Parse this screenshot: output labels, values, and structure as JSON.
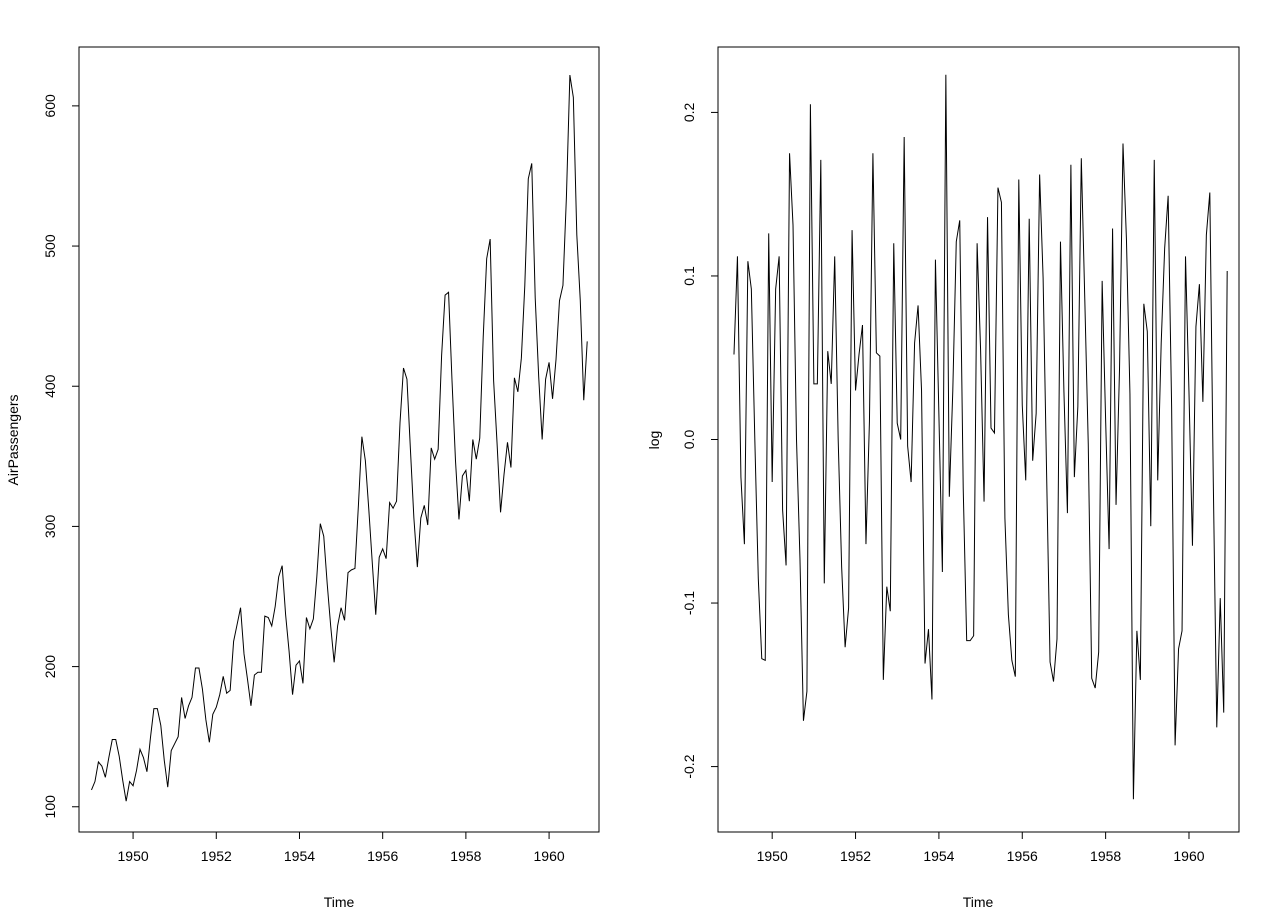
{
  "chart_data": [
    {
      "type": "line",
      "xlabel": "Time",
      "ylabel": "AirPassengers",
      "xlim": [
        1948.7,
        1961.2
      ],
      "ylim": [
        82,
        642
      ],
      "x_ticks": [
        1950,
        1952,
        1954,
        1956,
        1958,
        1960
      ],
      "x_tick_labels": [
        "1950",
        "1952",
        "1954",
        "1956",
        "1958",
        "1960"
      ],
      "y_ticks": [
        100,
        200,
        300,
        400,
        500,
        600
      ],
      "y_tick_labels": [
        "100",
        "200",
        "300",
        "400",
        "500",
        "600"
      ],
      "grid": false,
      "line_color": "#000000",
      "x_start": 1949,
      "x_step": 0.0833333,
      "values": [
        112,
        118,
        132,
        129,
        121,
        135,
        148,
        148,
        136,
        119,
        104,
        118,
        115,
        126,
        141,
        135,
        125,
        149,
        170,
        170,
        158,
        133,
        114,
        140,
        145,
        150,
        178,
        163,
        172,
        178,
        199,
        199,
        184,
        162,
        146,
        166,
        171,
        180,
        193,
        181,
        183,
        218,
        230,
        242,
        209,
        191,
        172,
        194,
        196,
        196,
        236,
        235,
        229,
        243,
        264,
        272,
        237,
        211,
        180,
        201,
        204,
        188,
        235,
        227,
        234,
        264,
        302,
        293,
        259,
        229,
        203,
        229,
        242,
        233,
        267,
        269,
        270,
        315,
        364,
        347,
        312,
        274,
        237,
        278,
        284,
        277,
        317,
        313,
        318,
        374,
        413,
        405,
        355,
        306,
        271,
        306,
        315,
        301,
        356,
        348,
        355,
        422,
        465,
        467,
        404,
        347,
        305,
        336,
        340,
        318,
        362,
        348,
        363,
        435,
        491,
        505,
        404,
        359,
        310,
        337,
        360,
        342,
        406,
        396,
        420,
        472,
        548,
        559,
        463,
        407,
        362,
        405,
        417,
        391,
        419,
        461,
        472,
        535,
        622,
        606,
        508,
        461,
        390,
        432
      ]
    },
    {
      "type": "line",
      "xlabel": "Time",
      "ylabel": "log",
      "xlim": [
        1948.7,
        1961.2
      ],
      "ylim": [
        -0.24,
        0.24
      ],
      "x_ticks": [
        1950,
        1952,
        1954,
        1956,
        1958,
        1960
      ],
      "x_tick_labels": [
        "1950",
        "1952",
        "1954",
        "1956",
        "1958",
        "1960"
      ],
      "y_ticks": [
        -0.2,
        -0.1,
        0.0,
        0.1,
        0.2
      ],
      "y_tick_labels": [
        "-0.2",
        "-0.1",
        "0.0",
        "0.1",
        "0.2"
      ],
      "grid": false,
      "line_color": "#000000",
      "x_start": 1949.0833333,
      "x_step": 0.0833333,
      "values": [
        0.052,
        0.112,
        -0.023,
        -0.064,
        0.109,
        0.092,
        0.0,
        -0.085,
        -0.134,
        -0.135,
        0.126,
        -0.026,
        0.092,
        0.112,
        -0.043,
        -0.077,
        0.175,
        0.131,
        0.0,
        -0.073,
        -0.172,
        -0.154,
        0.205,
        0.034,
        0.034,
        0.171,
        -0.088,
        0.054,
        0.034,
        0.112,
        0.0,
        -0.078,
        -0.127,
        -0.103,
        0.128,
        0.03,
        0.052,
        0.07,
        -0.064,
        0.011,
        0.175,
        0.053,
        0.051,
        -0.147,
        -0.09,
        -0.105,
        0.12,
        0.01,
        0.0,
        0.185,
        -0.004,
        -0.026,
        0.059,
        0.082,
        0.03,
        -0.137,
        -0.116,
        -0.159,
        0.11,
        0.015,
        -0.081,
        0.223,
        -0.035,
        0.03,
        0.121,
        0.134,
        -0.03,
        -0.123,
        -0.123,
        -0.12,
        0.12,
        0.055,
        -0.038,
        0.136,
        0.007,
        0.004,
        0.154,
        0.145,
        -0.048,
        -0.107,
        -0.135,
        -0.145,
        0.159,
        0.021,
        -0.025,
        0.135,
        -0.013,
        0.016,
        0.162,
        0.099,
        -0.02,
        -0.136,
        -0.148,
        -0.122,
        0.121,
        0.029,
        -0.045,
        0.168,
        -0.023,
        0.02,
        0.172,
        0.086,
        -0.003,
        -0.146,
        -0.152,
        -0.13,
        0.097,
        0.012,
        -0.067,
        0.129,
        -0.04,
        0.043,
        0.181,
        0.122,
        0.028,
        -0.22,
        -0.117,
        -0.147,
        0.083,
        0.066,
        -0.053,
        0.171,
        -0.025,
        0.059,
        0.117,
        0.149,
        0.02,
        -0.187,
        -0.128,
        -0.117,
        0.112,
        0.029,
        -0.065,
        0.069,
        0.095,
        0.023,
        0.125,
        0.151,
        -0.026,
        -0.176,
        -0.097,
        -0.167,
        0.103
      ]
    }
  ]
}
